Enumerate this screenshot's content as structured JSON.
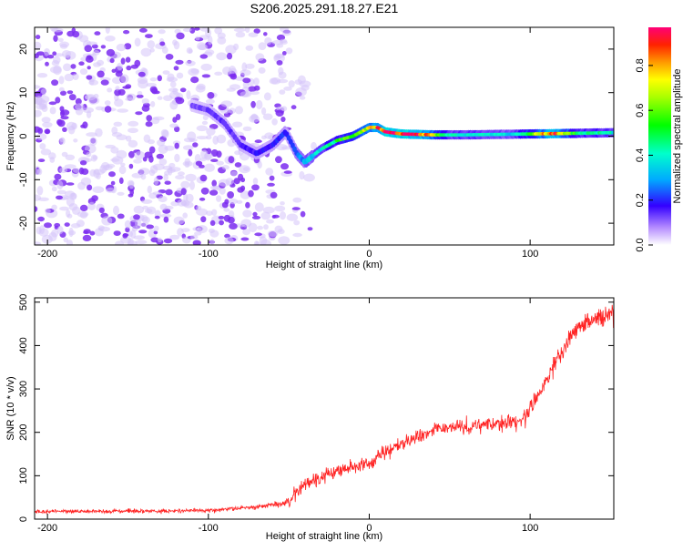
{
  "title": "S206.2025.291.18.27.E21",
  "colors": {
    "snr_line": "#ff2222",
    "noise_purple": "#7b2cf0",
    "noise_light": "#d6c4fa",
    "background": "#ffffff",
    "frame": "#000000"
  },
  "chart_data": [
    {
      "type": "heatmap",
      "name": "spectrogram",
      "xlabel": "Height of straight line (km)",
      "ylabel": "Frequency (Hz)",
      "xlim": [
        -208,
        152
      ],
      "ylim": [
        -25,
        25
      ],
      "xticks": [
        -200,
        -100,
        0,
        100
      ],
      "yticks": [
        -20,
        -10,
        0,
        10,
        20
      ],
      "colorbar": {
        "label": "Normalized spectral amplitude",
        "range": [
          0,
          0.97
        ],
        "ticks": [
          0.0,
          0.2,
          0.4,
          0.6,
          0.8
        ],
        "tick_labels": [
          "0.0",
          "0.2",
          "0.4",
          "0.6",
          "0.8"
        ],
        "colormap": "gist_rainbow_r"
      },
      "ridge": {
        "description": "dominant signal frequency track",
        "points": [
          [
            -110,
            7
          ],
          [
            -100,
            6
          ],
          [
            -90,
            3
          ],
          [
            -80,
            -2
          ],
          [
            -70,
            -4
          ],
          [
            -60,
            -2
          ],
          [
            -52,
            1
          ],
          [
            -45,
            -4
          ],
          [
            -40,
            -6
          ],
          [
            -30,
            -3
          ],
          [
            -20,
            -1
          ],
          [
            -10,
            0
          ],
          [
            -5,
            1
          ],
          [
            0,
            2
          ],
          [
            5,
            2
          ],
          [
            10,
            1
          ],
          [
            20,
            0.5
          ],
          [
            40,
            0.3
          ],
          [
            60,
            0.3
          ],
          [
            80,
            0.4
          ],
          [
            100,
            0.5
          ],
          [
            120,
            0.6
          ],
          [
            152,
            0.8
          ]
        ],
        "amplitude": [
          [
            -110,
            0.12
          ],
          [
            -80,
            0.15
          ],
          [
            -50,
            0.2
          ],
          [
            -40,
            0.3
          ],
          [
            -20,
            0.5
          ],
          [
            0,
            0.7
          ],
          [
            10,
            0.95
          ],
          [
            30,
            0.95
          ],
          [
            50,
            0.4
          ],
          [
            90,
            0.35
          ],
          [
            115,
            0.9
          ],
          [
            130,
            0.45
          ],
          [
            152,
            0.4
          ]
        ]
      },
      "noise_extent": {
        "dense_to_km": -50,
        "sparse_to_km": -30,
        "freq_range": [
          -25,
          25
        ]
      }
    },
    {
      "type": "line",
      "name": "snr",
      "xlabel": "Height of straight line (km)",
      "ylabel": "SNR (10 * v/v)",
      "xlim": [
        -208,
        152
      ],
      "ylim": [
        0,
        510
      ],
      "xticks": [
        -200,
        -100,
        0,
        100
      ],
      "yticks": [
        0,
        100,
        200,
        300,
        400,
        500
      ],
      "trend": [
        [
          -208,
          18
        ],
        [
          -150,
          18
        ],
        [
          -100,
          20
        ],
        [
          -70,
          28
        ],
        [
          -50,
          40
        ],
        [
          -40,
          80
        ],
        [
          -20,
          110
        ],
        [
          0,
          130
        ],
        [
          10,
          155
        ],
        [
          20,
          175
        ],
        [
          40,
          205
        ],
        [
          60,
          215
        ],
        [
          80,
          220
        ],
        [
          95,
          232
        ],
        [
          105,
          280
        ],
        [
          115,
          360
        ],
        [
          125,
          420
        ],
        [
          135,
          455
        ],
        [
          152,
          475
        ]
      ],
      "noise": [
        [
          -208,
          8
        ],
        [
          -60,
          10
        ],
        [
          -45,
          30
        ],
        [
          0,
          35
        ],
        [
          50,
          30
        ],
        [
          100,
          40
        ],
        [
          152,
          45
        ]
      ]
    }
  ]
}
